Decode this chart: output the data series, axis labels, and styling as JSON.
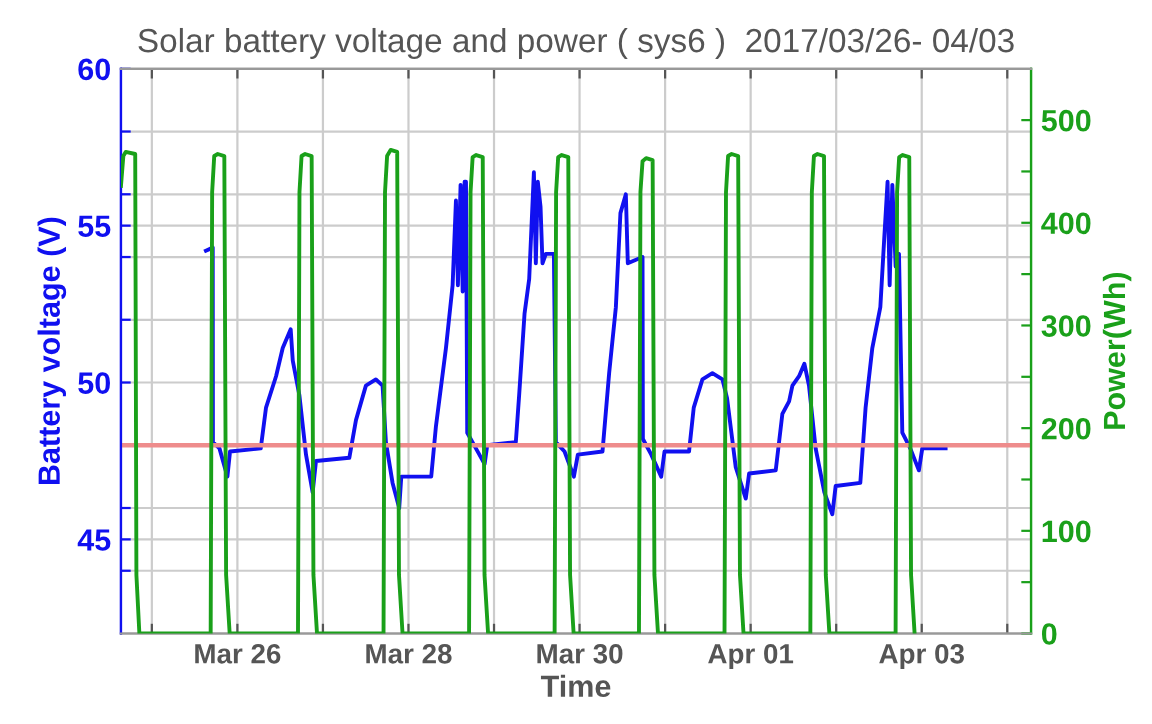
{
  "chart_data": {
    "type": "line",
    "title": "Solar battery voltage and power ( sys6 )  2017/03/26- 04/03",
    "xlabel": "Time",
    "ylabel": "Battery voltage (V)",
    "y2label": "Power(Wh)",
    "xlim": [
      "2017-03-24T15:20",
      "2017-04-04T06:40"
    ],
    "xticks": [
      {
        "value": "2017-03-25",
        "label": null
      },
      {
        "value": "2017-03-26",
        "label": "Mar 26"
      },
      {
        "value": "2017-03-27",
        "label": null
      },
      {
        "value": "2017-03-28",
        "label": "Mar 28"
      },
      {
        "value": "2017-03-29",
        "label": null
      },
      {
        "value": "2017-03-30",
        "label": "Mar 30"
      },
      {
        "value": "2017-03-31",
        "label": null
      },
      {
        "value": "2017-04-01",
        "label": "Apr 01"
      },
      {
        "value": "2017-04-02",
        "label": null
      },
      {
        "value": "2017-04-03",
        "label": "Apr 03"
      },
      {
        "value": "2017-04-04",
        "label": null
      }
    ],
    "ylim": [
      42,
      60
    ],
    "yticks": [
      {
        "value": 44,
        "label": null
      },
      45,
      {
        "value": 46,
        "label": null
      },
      {
        "value": 48,
        "label": null
      },
      50,
      {
        "value": 52,
        "label": null
      },
      {
        "value": 54,
        "label": null
      },
      55,
      {
        "value": 56,
        "label": null
      },
      {
        "value": 58,
        "label": null
      },
      60
    ],
    "y2lim": [
      0,
      550
    ],
    "y2ticks": [
      0,
      {
        "value": 50,
        "label": null
      },
      100,
      {
        "value": 150,
        "label": null
      },
      200,
      {
        "value": 250,
        "label": null
      },
      300,
      {
        "value": 350,
        "label": null
      },
      400,
      {
        "value": 450,
        "label": null
      },
      500
    ],
    "grid": true,
    "line_style": "solid",
    "marker": "none",
    "ref_lines": [
      {
        "axis": "y",
        "value": 48,
        "color": "#ee8c8c"
      }
    ],
    "series": [
      {
        "color": "#1010f0",
        "x": [
          "2017-03-25T15:10",
          "2017-03-25T17:05",
          "2017-03-25T17:08",
          "2017-03-25T18:58",
          "2017-03-25T21:12",
          "2017-03-25T21:56",
          "2017-03-26T06:33",
          "2017-03-26T08:02",
          "2017-03-26T10:51",
          "2017-03-26T12:43",
          "2017-03-26T14:57",
          "2017-03-26T15:32",
          "2017-03-26T17:23",
          "2017-03-26T19:15",
          "2017-03-26T21:07",
          "2017-03-26T22:03",
          "2017-03-27T07:24",
          "2017-03-27T09:16",
          "2017-03-27T12:03",
          "2017-03-27T14:51",
          "2017-03-27T16:44",
          "2017-03-27T17:40",
          "2017-03-27T19:32",
          "2017-03-27T21:24",
          "2017-03-27T21:59",
          "2017-03-28T06:23",
          "2017-03-28T07:42",
          "2017-03-28T10:31",
          "2017-03-28T12:23",
          "2017-03-28T13:19",
          "2017-03-28T13:52",
          "2017-03-28T14:37",
          "2017-03-28T15:12",
          "2017-03-28T15:45",
          "2017-03-28T16:08",
          "2017-03-28T16:29",
          "2017-03-28T18:55",
          "2017-03-28T21:22",
          "2017-03-28T22:06",
          "2017-03-29T06:07",
          "2017-03-29T07:03",
          "2017-03-29T08:34",
          "2017-03-29T09:52",
          "2017-03-29T11:11",
          "2017-03-29T11:44",
          "2017-03-29T12:17",
          "2017-03-29T13:03",
          "2017-03-29T13:36",
          "2017-03-29T14:33",
          "2017-03-29T16:48",
          "2017-03-29T17:21",
          "2017-03-29T19:47",
          "2017-03-29T22:24",
          "2017-03-29T23:31",
          "2017-03-30T06:26",
          "2017-03-30T08:18",
          "2017-03-30T10:11",
          "2017-03-30T11:28",
          "2017-03-30T12:59",
          "2017-03-30T13:32",
          "2017-03-30T17:40",
          "2017-03-30T17:46",
          "2017-03-30T20:07",
          "2017-03-30T22:54",
          "2017-03-30T23:50",
          "2017-03-31T06:43",
          "2017-03-31T08:02",
          "2017-03-31T10:28",
          "2017-03-31T13:16",
          "2017-03-31T16:05",
          "2017-03-31T17:23",
          "2017-03-31T19:49",
          "2017-03-31T22:38",
          "2017-03-31T23:34",
          "2017-04-01T07:02",
          "2017-04-01T08:54",
          "2017-04-01T10:47",
          "2017-04-01T11:43",
          "2017-04-01T13:35",
          "2017-04-01T15:04",
          "2017-04-01T16:22",
          "2017-04-01T18:14",
          "2017-04-01T20:41",
          "2017-04-01T22:55",
          "2017-04-01T23:51",
          "2017-04-02T06:46",
          "2017-04-02T08:15",
          "2017-04-02T10:08",
          "2017-04-02T12:23",
          "2017-04-02T13:29",
          "2017-04-02T14:25",
          "2017-04-02T15:00",
          "2017-04-02T15:45",
          "2017-04-02T16:41",
          "2017-04-02T17:37",
          "2017-04-02T18:33",
          "2017-04-02T20:47",
          "2017-04-02T23:12",
          "2017-04-03T00:09",
          "2017-04-03T06:42"
        ],
        "values": [
          54.2,
          54.3,
          48.1,
          47.9,
          47.0,
          47.8,
          47.9,
          49.2,
          50.2,
          51.1,
          51.7,
          50.7,
          49.6,
          47.7,
          46.5,
          47.5,
          47.6,
          48.8,
          49.9,
          50.1,
          49.9,
          48.1,
          46.8,
          46.0,
          47.0,
          47.0,
          48.6,
          51.1,
          53.1,
          55.8,
          53.1,
          56.3,
          52.9,
          56.4,
          56.4,
          48.4,
          47.9,
          47.4,
          48.0,
          48.1,
          49.6,
          52.2,
          53.3,
          56.7,
          53.8,
          56.4,
          55.6,
          53.8,
          54.1,
          54.1,
          48.1,
          47.8,
          47.0,
          47.7,
          47.8,
          50.3,
          52.4,
          55.4,
          56.0,
          53.8,
          54.0,
          48.2,
          47.7,
          47.0,
          47.8,
          47.8,
          49.2,
          50.1,
          50.3,
          50.1,
          49.5,
          47.3,
          46.3,
          47.1,
          47.2,
          49.0,
          49.4,
          49.9,
          50.2,
          50.6,
          49.9,
          47.9,
          46.5,
          45.8,
          46.7,
          46.8,
          49.2,
          51.1,
          52.4,
          54.6,
          56.4,
          53.1,
          56.3,
          53.7,
          54.1,
          48.4,
          47.9,
          47.2,
          47.9,
          47.9
        ]
      },
      {
        "color": "#1aa01a",
        "axis": "y2",
        "x": [
          "2017-03-24T15:20",
          "2017-03-24T16:00",
          "2017-03-24T16:40",
          "2017-03-24T19:20",
          "2017-03-24T19:40",
          "2017-03-24T20:30",
          "2017-03-25T16:30",
          "2017-03-25T16:55",
          "2017-03-25T17:30",
          "2017-03-25T18:30",
          "2017-03-25T20:20",
          "2017-03-25T20:50",
          "2017-03-25T21:50",
          "2017-03-26T17:00",
          "2017-03-26T17:25",
          "2017-03-26T18:00",
          "2017-03-26T19:00",
          "2017-03-26T20:50",
          "2017-03-26T21:20",
          "2017-03-26T22:20",
          "2017-03-27T17:00",
          "2017-03-27T17:25",
          "2017-03-27T18:00",
          "2017-03-27T19:00",
          "2017-03-27T20:50",
          "2017-03-27T21:20",
          "2017-03-27T22:20",
          "2017-03-28T17:00",
          "2017-03-28T17:25",
          "2017-03-28T18:00",
          "2017-03-28T19:00",
          "2017-03-28T20:50",
          "2017-03-28T21:20",
          "2017-03-28T22:20",
          "2017-03-29T17:00",
          "2017-03-29T17:25",
          "2017-03-29T18:00",
          "2017-03-29T19:00",
          "2017-03-29T20:50",
          "2017-03-29T21:20",
          "2017-03-29T22:20",
          "2017-03-30T16:40",
          "2017-03-30T17:05",
          "2017-03-30T17:40",
          "2017-03-30T18:40",
          "2017-03-30T20:30",
          "2017-03-30T21:00",
          "2017-03-30T22:00",
          "2017-03-31T16:40",
          "2017-03-31T17:05",
          "2017-03-31T17:40",
          "2017-03-31T18:40",
          "2017-03-31T20:30",
          "2017-03-31T21:00",
          "2017-03-31T22:00",
          "2017-04-01T16:45",
          "2017-04-01T17:10",
          "2017-04-01T17:45",
          "2017-04-01T18:45",
          "2017-04-01T20:35",
          "2017-04-01T21:05",
          "2017-04-01T22:05",
          "2017-04-02T16:40",
          "2017-04-02T17:05",
          "2017-04-02T17:40",
          "2017-04-02T18:40",
          "2017-04-02T20:30",
          "2017-04-02T21:00",
          "2017-04-02T22:00"
        ],
        "values": [
          436,
          465,
          469,
          467,
          57,
          0,
          0,
          430,
          465,
          467,
          465,
          57,
          0,
          0,
          430,
          465,
          467,
          465,
          57,
          0,
          0,
          430,
          465,
          471,
          469,
          57,
          0,
          0,
          430,
          464,
          466,
          464,
          57,
          0,
          0,
          430,
          464,
          466,
          464,
          57,
          0,
          0,
          430,
          460,
          463,
          461,
          57,
          0,
          0,
          430,
          465,
          467,
          465,
          57,
          0,
          0,
          430,
          465,
          467,
          465,
          57,
          0,
          0,
          430,
          464,
          466,
          464,
          57,
          0
        ]
      }
    ]
  }
}
